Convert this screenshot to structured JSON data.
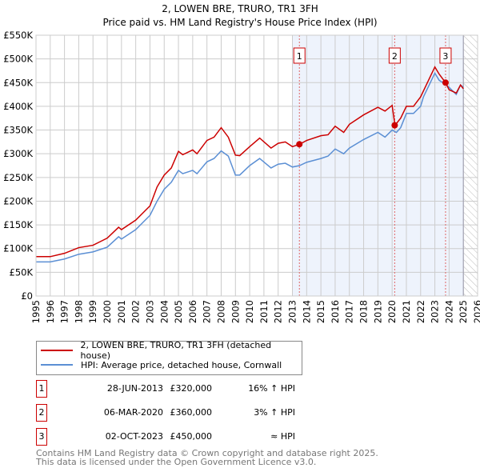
{
  "chart_data": {
    "type": "line",
    "title": "2, LOWEN BRE, TRURO, TR1 3FH",
    "subtitle": "Price paid vs. HM Land Registry's House Price Index (HPI)",
    "xlim": [
      1995,
      2026
    ],
    "ylim": [
      0,
      550000
    ],
    "x_ticks": [
      "1995",
      "1996",
      "1997",
      "1998",
      "1999",
      "2000",
      "2001",
      "2002",
      "2003",
      "2004",
      "2005",
      "2006",
      "2007",
      "2008",
      "2009",
      "2010",
      "2011",
      "2012",
      "2013",
      "2014",
      "2015",
      "2016",
      "2017",
      "2018",
      "2019",
      "2020",
      "2021",
      "2022",
      "2023",
      "2024",
      "2025",
      "2026"
    ],
    "y_ticks": [
      {
        "v": 0,
        "label": "£0"
      },
      {
        "v": 50000,
        "label": "£50K"
      },
      {
        "v": 100000,
        "label": "£100K"
      },
      {
        "v": 150000,
        "label": "£150K"
      },
      {
        "v": 200000,
        "label": "£200K"
      },
      {
        "v": 250000,
        "label": "£250K"
      },
      {
        "v": 300000,
        "label": "£300K"
      },
      {
        "v": 350000,
        "label": "£350K"
      },
      {
        "v": 400000,
        "label": "£400K"
      },
      {
        "v": 450000,
        "label": "£450K"
      },
      {
        "v": 500000,
        "label": "£500K"
      },
      {
        "v": 550000,
        "label": "£550K"
      }
    ],
    "grid": true,
    "shaded_range": [
      2013,
      2025
    ],
    "forecast_hatch": [
      2025,
      2026
    ],
    "series": [
      {
        "name": "2, LOWEN BRE, TRURO, TR1 3FH (detached house)",
        "color": "#cc0000",
        "x": [
          1995,
          1996,
          1997,
          1998,
          1999,
          2000,
          2000.8,
          2001,
          2002,
          2003,
          2003.5,
          2004,
          2004.5,
          2005,
          2005.3,
          2006,
          2006.3,
          2007,
          2007.5,
          2008,
          2008.5,
          2009,
          2009.3,
          2010,
          2010.7,
          2011.5,
          2012,
          2012.5,
          2013,
          2013.5,
          2014,
          2015,
          2015.5,
          2016,
          2016.6,
          2017,
          2018,
          2019,
          2019.5,
          2020,
          2020.2,
          2020.6,
          2021,
          2021.5,
          2022,
          2023,
          2023.3,
          2023.75,
          2024,
          2024.5,
          2024.8,
          2025
        ],
        "y": [
          83000,
          83000,
          90000,
          102000,
          107000,
          122000,
          145000,
          140000,
          160000,
          190000,
          230000,
          255000,
          270000,
          305000,
          298000,
          308000,
          300000,
          328000,
          335000,
          355000,
          335000,
          297000,
          296000,
          315000,
          333000,
          312000,
          322000,
          325000,
          315000,
          320000,
          328000,
          338000,
          340000,
          358000,
          345000,
          362000,
          382000,
          398000,
          390000,
          402000,
          360000,
          375000,
          400000,
          400000,
          420000,
          483000,
          468000,
          450000,
          435000,
          428000,
          445000,
          437000
        ]
      },
      {
        "name": "HPI: Average price, detached house, Cornwall",
        "color": "#5b8fd4",
        "x": [
          1995,
          1996,
          1997,
          1998,
          1999,
          2000,
          2000.8,
          2001,
          2002,
          2003,
          2003.5,
          2004,
          2004.5,
          2005,
          2005.3,
          2006,
          2006.3,
          2007,
          2007.5,
          2008,
          2008.5,
          2009,
          2009.3,
          2010,
          2010.7,
          2011.5,
          2012,
          2012.5,
          2013,
          2013.5,
          2014,
          2015,
          2015.5,
          2016,
          2016.6,
          2017,
          2018,
          2019,
          2019.5,
          2020,
          2020.3,
          2020.6,
          2021,
          2021.5,
          2022,
          2022.2,
          2023,
          2023.3,
          2023.8,
          2024,
          2024.5,
          2024.8,
          2025
        ],
        "y": [
          72000,
          72000,
          78000,
          88000,
          93000,
          103000,
          125000,
          120000,
          140000,
          170000,
          200000,
          225000,
          240000,
          265000,
          258000,
          265000,
          258000,
          283000,
          290000,
          306000,
          295000,
          255000,
          255000,
          275000,
          290000,
          270000,
          278000,
          280000,
          272000,
          275000,
          282000,
          290000,
          295000,
          310000,
          300000,
          312000,
          330000,
          345000,
          335000,
          350000,
          345000,
          355000,
          385000,
          385000,
          400000,
          420000,
          470000,
          455000,
          445000,
          440000,
          425000,
          445000,
          440000
        ]
      }
    ],
    "sales": [
      {
        "n": "1",
        "x": 2013.49,
        "y": 320000,
        "date": "28-JUN-2013",
        "price": "£320,000",
        "hpi": "16% ↑ HPI"
      },
      {
        "n": "2",
        "x": 2020.18,
        "y": 360000,
        "date": "06-MAR-2020",
        "price": "£360,000",
        "hpi": "3% ↑ HPI"
      },
      {
        "n": "3",
        "x": 2023.75,
        "y": 450000,
        "date": "02-OCT-2023",
        "price": "£450,000",
        "hpi": "≈ HPI"
      }
    ]
  },
  "footer": {
    "line1": "Contains HM Land Registry data © Crown copyright and database right 2025.",
    "line2": "This data is licensed under the Open Government Licence v3.0."
  }
}
